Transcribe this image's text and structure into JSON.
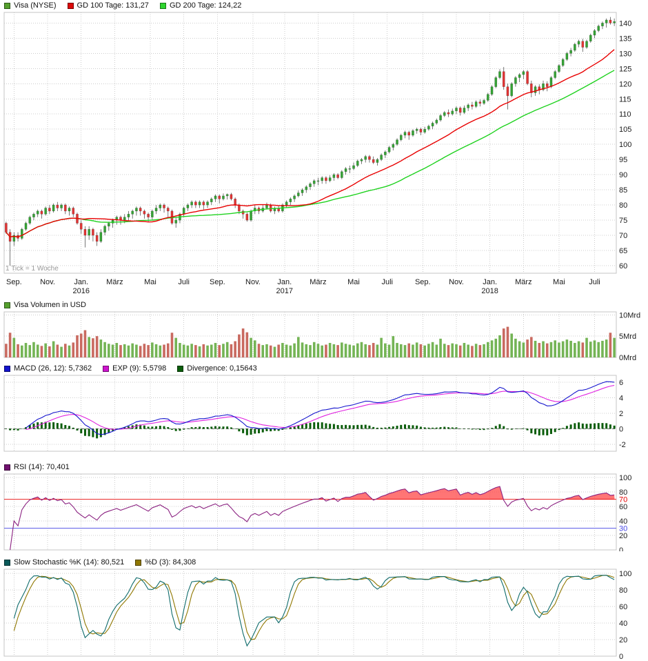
{
  "chart_data": [
    {
      "type": "candlestick",
      "title": "Visa (NYSE)",
      "x_unit_note": "1 Tick = 1 Woche",
      "legend": [
        {
          "label": "Visa (NYSE)",
          "color": "#55A02E"
        },
        {
          "label": "GD 100 Tage: 131,27",
          "color": "#DC0A0A"
        },
        {
          "label": "GD 200 Tage: 124,22",
          "color": "#2ED52E"
        }
      ],
      "candle_up": "#35A335",
      "candle_down": "#E23434",
      "wick_color": "#555555",
      "gd100": {
        "label": "GD 100 Tage",
        "current": "131,27",
        "period_weeks": 20,
        "color": "#E80000"
      },
      "gd200": {
        "label": "GD 200 Tage",
        "current": "124,22",
        "period_weeks": 40,
        "color": "#1ED21E"
      },
      "ylim": [
        57.5,
        143.5
      ],
      "yticks": [
        140,
        135,
        130,
        125,
        120,
        115,
        110,
        105,
        100,
        95,
        90,
        85,
        80,
        75,
        70,
        65,
        60
      ],
      "xticks": [
        {
          "label": "Sep.",
          "week": 2
        },
        {
          "label": "Nov.",
          "week": 10.5
        },
        {
          "label": "Jan.",
          "week": 19,
          "year": "2016"
        },
        {
          "label": "März",
          "week": 27.5
        },
        {
          "label": "Mai",
          "week": 36.5
        },
        {
          "label": "Juli",
          "week": 45
        },
        {
          "label": "Sep.",
          "week": 53.5
        },
        {
          "label": "Nov.",
          "week": 62.5
        },
        {
          "label": "Jan.",
          "week": 70.5,
          "year": "2017"
        },
        {
          "label": "März",
          "week": 79
        },
        {
          "label": "Mai",
          "week": 88
        },
        {
          "label": "Juli",
          "week": 96.5
        },
        {
          "label": "Sep.",
          "week": 105.5
        },
        {
          "label": "Nov.",
          "week": 114
        },
        {
          "label": "Jan.",
          "week": 122.5,
          "year": "2018"
        },
        {
          "label": "März",
          "week": 131
        },
        {
          "label": "Mai",
          "week": 140
        },
        {
          "label": "Juli",
          "week": 149
        }
      ],
      "candles": [
        [
          74,
          74.5,
          70.5,
          71
        ],
        [
          71,
          72,
          60,
          68
        ],
        [
          68,
          71,
          66.5,
          70
        ],
        [
          70,
          71,
          68,
          69
        ],
        [
          69,
          72.5,
          68.5,
          72
        ],
        [
          72,
          74.5,
          71.5,
          74
        ],
        [
          74,
          76.5,
          73.5,
          76
        ],
        [
          76,
          77.5,
          75,
          77
        ],
        [
          77,
          78.5,
          76,
          78
        ],
        [
          78,
          78.5,
          75.5,
          77
        ],
        [
          77,
          79.5,
          76.5,
          79
        ],
        [
          79,
          80,
          77,
          78
        ],
        [
          78,
          80.5,
          77.5,
          80
        ],
        [
          80,
          81,
          78,
          79
        ],
        [
          79,
          80.5,
          78,
          80
        ],
        [
          80,
          80.5,
          77,
          78
        ],
        [
          78,
          79.5,
          76.5,
          79
        ],
        [
          79,
          79.5,
          76,
          77
        ],
        [
          77,
          77.5,
          73.5,
          74
        ],
        [
          74,
          75,
          70.5,
          72
        ],
        [
          72,
          73,
          66,
          70
        ],
        [
          70,
          73,
          68.5,
          72
        ],
        [
          72,
          72.5,
          68,
          70
        ],
        [
          70,
          71,
          66.5,
          68
        ],
        [
          68,
          72,
          67.5,
          71
        ],
        [
          71,
          73.5,
          70,
          73
        ],
        [
          73,
          74.5,
          71.5,
          74
        ],
        [
          74,
          75.5,
          72.5,
          75
        ],
        [
          75,
          76.5,
          73.5,
          76
        ],
        [
          76,
          76.5,
          73.5,
          75
        ],
        [
          75,
          77,
          74,
          76
        ],
        [
          76,
          78,
          75,
          77
        ],
        [
          77,
          78.5,
          75.5,
          78
        ],
        [
          78,
          79.5,
          76.5,
          79
        ],
        [
          79,
          79.5,
          76.5,
          78
        ],
        [
          78,
          78.5,
          75.5,
          77
        ],
        [
          77,
          77.5,
          74.5,
          76
        ],
        [
          76,
          78.5,
          75,
          78
        ],
        [
          78,
          80,
          77,
          79
        ],
        [
          79,
          80.5,
          78,
          80
        ],
        [
          80,
          80.5,
          77.5,
          79
        ],
        [
          79,
          79.5,
          76,
          78
        ],
        [
          78,
          78.5,
          73.5,
          74
        ],
        [
          74,
          76,
          72.5,
          75
        ],
        [
          75,
          77.5,
          74,
          77
        ],
        [
          77,
          79.5,
          76,
          79
        ],
        [
          79,
          80.5,
          78,
          80
        ],
        [
          80,
          81.5,
          79,
          81
        ],
        [
          81,
          81.5,
          79,
          80
        ],
        [
          80,
          81.5,
          79,
          81
        ],
        [
          81,
          81.5,
          78.5,
          80
        ],
        [
          80,
          81.5,
          79,
          81
        ],
        [
          81,
          82.5,
          80,
          82
        ],
        [
          82,
          83.5,
          81,
          83
        ],
        [
          83,
          83.5,
          80.5,
          82
        ],
        [
          82,
          83.8,
          81.5,
          83
        ],
        [
          83,
          83.8,
          81.8,
          83.5
        ],
        [
          83.5,
          84,
          81.5,
          82
        ],
        [
          82,
          82.5,
          79,
          80
        ],
        [
          80,
          80.5,
          77,
          78
        ],
        [
          78,
          78.5,
          75.5,
          77
        ],
        [
          77,
          77.5,
          74.5,
          75
        ],
        [
          75,
          78.5,
          74.5,
          78
        ],
        [
          78,
          80,
          77,
          79
        ],
        [
          79,
          79.5,
          77,
          78
        ],
        [
          78,
          80,
          77.5,
          79
        ],
        [
          79,
          80.8,
          78.5,
          80
        ],
        [
          80,
          80.5,
          77.5,
          78
        ],
        [
          78,
          79.5,
          77,
          79
        ],
        [
          79,
          79.8,
          77.5,
          78
        ],
        [
          78,
          80.5,
          77.5,
          80
        ],
        [
          80,
          81.5,
          79,
          81
        ],
        [
          81,
          82.5,
          80,
          82
        ],
        [
          82,
          83.5,
          81,
          83
        ],
        [
          83,
          84.8,
          82.5,
          84
        ],
        [
          84,
          85.5,
          83,
          85
        ],
        [
          85,
          86.5,
          84,
          86
        ],
        [
          86,
          87.5,
          85,
          87
        ],
        [
          87,
          88.5,
          86,
          88
        ],
        [
          88,
          89,
          86.5,
          88
        ],
        [
          88,
          89.5,
          87,
          89
        ],
        [
          89,
          89.5,
          87,
          88
        ],
        [
          88,
          89.8,
          87.5,
          89
        ],
        [
          89,
          90.5,
          88,
          90
        ],
        [
          90,
          90.5,
          88.5,
          89
        ],
        [
          89,
          91.5,
          88.5,
          91
        ],
        [
          91,
          92.5,
          90,
          92
        ],
        [
          92,
          93,
          90.5,
          92
        ],
        [
          92,
          94,
          91.5,
          93
        ],
        [
          93,
          95,
          92.5,
          94.5
        ],
        [
          94.5,
          95.5,
          93.5,
          95
        ],
        [
          95,
          96.5,
          94,
          96
        ],
        [
          96,
          96.5,
          94,
          95
        ],
        [
          95,
          96,
          93.5,
          94
        ],
        [
          94,
          95.5,
          93,
          95
        ],
        [
          95,
          97,
          94.5,
          96.5
        ],
        [
          96.5,
          98,
          95.5,
          97.5
        ],
        [
          97.5,
          99.5,
          97,
          99
        ],
        [
          99,
          100.5,
          98,
          100
        ],
        [
          100,
          102,
          99.5,
          101.5
        ],
        [
          101.5,
          103.5,
          101,
          103
        ],
        [
          103,
          104.5,
          102,
          104
        ],
        [
          104,
          104.5,
          101.5,
          103
        ],
        [
          103,
          105,
          102.5,
          104.5
        ],
        [
          104.5,
          105.5,
          103.5,
          105
        ],
        [
          105,
          105.5,
          103,
          104
        ],
        [
          104,
          105.8,
          103.5,
          105
        ],
        [
          105,
          106.5,
          104.5,
          106
        ],
        [
          106,
          107.5,
          105,
          107
        ],
        [
          107,
          108.5,
          106.5,
          108
        ],
        [
          108,
          110,
          107.5,
          109.5
        ],
        [
          109.5,
          111,
          109,
          110.5
        ],
        [
          110.5,
          111.5,
          109,
          110
        ],
        [
          110,
          111.8,
          109.5,
          111
        ],
        [
          111,
          112.5,
          110,
          112
        ],
        [
          112,
          112.5,
          109.5,
          110.5
        ],
        [
          110.5,
          112.8,
          110,
          112
        ],
        [
          112,
          113.5,
          111,
          113
        ],
        [
          113,
          114,
          111.5,
          112.5
        ],
        [
          112.5,
          114.5,
          112,
          114
        ],
        [
          114,
          114.8,
          112.5,
          113.5
        ],
        [
          113.5,
          115,
          113,
          114.5
        ],
        [
          114.5,
          117,
          114,
          116.5
        ],
        [
          116.5,
          119.5,
          116,
          119
        ],
        [
          119,
          122.5,
          118.5,
          122
        ],
        [
          122,
          124.8,
          121.5,
          124
        ],
        [
          124,
          125.5,
          118,
          119
        ],
        [
          119,
          120,
          111.5,
          116
        ],
        [
          116,
          120.5,
          115.5,
          120
        ],
        [
          120,
          122.5,
          119,
          122
        ],
        [
          122,
          123.5,
          120.5,
          123
        ],
        [
          123,
          124.5,
          121.5,
          124
        ],
        [
          124,
          124.5,
          119.5,
          120
        ],
        [
          120,
          121,
          115.5,
          117
        ],
        [
          117,
          119.5,
          116,
          119
        ],
        [
          119,
          119.8,
          116.5,
          118
        ],
        [
          118,
          121,
          117.5,
          120
        ],
        [
          120,
          120.8,
          117.5,
          119
        ],
        [
          119,
          122.5,
          118.5,
          122
        ],
        [
          122,
          124.5,
          121.5,
          124
        ],
        [
          124,
          126.5,
          123.5,
          126
        ],
        [
          126,
          128.5,
          125.5,
          128
        ],
        [
          128,
          130.5,
          127.5,
          130
        ],
        [
          130,
          131.8,
          129,
          131
        ],
        [
          131,
          133.5,
          130.5,
          133
        ],
        [
          133,
          134.5,
          132,
          134
        ],
        [
          134,
          134.8,
          130.5,
          132
        ],
        [
          132,
          134.5,
          131.5,
          134
        ],
        [
          134,
          136.5,
          133.5,
          136
        ],
        [
          136,
          138,
          135,
          137.5
        ],
        [
          137.5,
          139.5,
          137,
          139
        ],
        [
          139,
          140.5,
          138,
          140
        ],
        [
          140,
          141.5,
          138.5,
          141
        ],
        [
          141,
          142,
          139.5,
          140
        ],
        [
          140,
          141.5,
          139,
          140.5
        ]
      ]
    },
    {
      "type": "bar",
      "title": "Visa Volumen in USD",
      "legend": [
        {
          "label": "Visa Volumen in USD",
          "color": "#55A02E"
        }
      ],
      "unit": "Mrd",
      "up_color": "#74B455",
      "down_color": "#C96A60",
      "ylim": [
        0,
        10.7
      ],
      "yticks": [
        {
          "value": 10,
          "label": "10Mrd"
        },
        {
          "value": 5,
          "label": "5Mrd"
        },
        {
          "value": 0,
          "label": "0Mrd"
        }
      ],
      "values": [
        3.2,
        5.8,
        4.6,
        3.1,
        2.8,
        3.4,
        2.9,
        3.6,
        3,
        2.7,
        3.3,
        2.6,
        3.8,
        3,
        2.5,
        3.2,
        2.8,
        3.5,
        5.2,
        5.6,
        6.4,
        4.8,
        4.5,
        5,
        4.2,
        3.6,
        3.2,
        3,
        3.4,
        2.9,
        3.1,
        2.8,
        3.3,
        3,
        2.7,
        3.2,
        2.9,
        3.5,
        3.1,
        2.8,
        3,
        3.3,
        5.8,
        4.6,
        3.4,
        3,
        2.8,
        3.2,
        2.9,
        2.6,
        3.1,
        2.8,
        3,
        3.4,
        2.9,
        3.2,
        3.6,
        3.1,
        3.8,
        5.4,
        6.8,
        5.9,
        4.6,
        4,
        3.2,
        2.9,
        3.1,
        2.8,
        2.5,
        3,
        3.4,
        3,
        2.8,
        3.3,
        4.8,
        3.5,
        3.1,
        2.9,
        3.6,
        3.2,
        2.8,
        3,
        3.4,
        3.1,
        2.9,
        3.5,
        3.2,
        3,
        2.8,
        3.3,
        3.6,
        3.1,
        2.9,
        3.4,
        3,
        4.6,
        3.3,
        3,
        5,
        3.4,
        3.1,
        2.9,
        3.3,
        3,
        3.5,
        3.1,
        2.8,
        3.2,
        3.6,
        3,
        4.4,
        3.2,
        2.9,
        3.3,
        3.1,
        2.8,
        3.4,
        3,
        2.7,
        3.2,
        2.9,
        3.1,
        3.6,
        4,
        4.4,
        5.2,
        6.8,
        7.2,
        5.6,
        4.4,
        3.8,
        3.5,
        4.2,
        4.8,
        3.9,
        3.4,
        3.8,
        3.3,
        3.6,
        4,
        3.5,
        3.8,
        4.2,
        3.9,
        3.4,
        3.8,
        3.5,
        4.6,
        3.7,
        4,
        3.6,
        3.9,
        4.2,
        5.8,
        4.6
      ]
    },
    {
      "type": "line",
      "title": "MACD",
      "legend": [
        {
          "label": "MACD (26, 12): 5,7362",
          "color": "#1414CD"
        },
        {
          "label": "EXP (9): 5,5798",
          "color": "#CD14CD"
        },
        {
          "label": "Divergence: 0,15643",
          "color": "#0B5D0B"
        }
      ],
      "params": {
        "slow": 26,
        "fast": 12,
        "signal": 9
      },
      "current": {
        "macd": "5,7362",
        "exp": "5,5798",
        "divergence": "0,15643"
      },
      "macd_color": "#1414CD",
      "signal_color": "#E020E0",
      "hist_color": "#0B5D0B",
      "ylim": [
        -2.9,
        6.9
      ],
      "yticks": [
        6,
        4,
        2,
        0,
        -2
      ]
    },
    {
      "type": "line",
      "title": "RSI",
      "legend": [
        {
          "label": "RSI (14): 70,401",
          "color": "#70106E"
        }
      ],
      "period": 14,
      "current": "70,401",
      "color": "#8A2080",
      "overbought": {
        "value": 70,
        "label": "70",
        "color": "#E50000",
        "fill": "#FF4040"
      },
      "oversold": {
        "value": 30,
        "label": "30",
        "color": "#4646E5"
      },
      "ylim": [
        0,
        105
      ],
      "yticks": [
        100,
        80,
        60,
        40,
        20,
        0
      ]
    },
    {
      "type": "line",
      "title": "Slow Stochastic",
      "legend": [
        {
          "label": "Slow Stochastic %K (14): 80,521",
          "color": "#0A5A5A"
        },
        {
          "label": "%D (3): 84,308",
          "color": "#8F7700"
        }
      ],
      "k_period": 14,
      "smooth": 3,
      "d_period": 3,
      "current_k": "80,521",
      "current_d": "84,308",
      "k_color": "#0E6B6B",
      "d_color": "#8F7700",
      "ylim": [
        0,
        105
      ],
      "yticks": [
        100,
        80,
        60,
        40,
        20,
        0
      ]
    }
  ]
}
